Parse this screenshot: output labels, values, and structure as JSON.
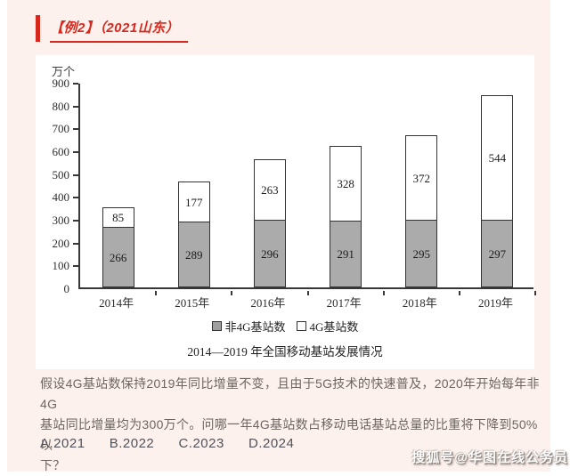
{
  "page": {
    "header": {
      "title": "【例2】（2021山东）"
    },
    "question": {
      "lines": [
        "假设4G基站数保持2019年同比增量不变，且由于5G技术的快速普及，2020年开始每年非4G",
        "基站同比增量均为300万个。问哪一年4G基站数占移动电话基站总量的比重将下降到50%以",
        "下？"
      ]
    },
    "options": [
      "A.2021",
      "B.2022",
      "C.2023",
      "D.2024"
    ]
  },
  "chart_data": {
    "type": "bar",
    "stacked": true,
    "title": "2014—2019 年全国移动基站发展情况",
    "unit_label": "万个",
    "categories": [
      "2014年",
      "2015年",
      "2016年",
      "2017年",
      "2018年",
      "2019年"
    ],
    "series": [
      {
        "name": "非4G基站数",
        "color": "#ababab",
        "values": [
          266,
          289,
          296,
          291,
          295,
          297
        ]
      },
      {
        "name": "4G基站数",
        "color": "#ffffff",
        "values": [
          85,
          177,
          263,
          328,
          372,
          544
        ]
      }
    ],
    "totals": [
      351,
      466,
      559,
      619,
      667,
      841
    ],
    "ylim": [
      0,
      900
    ],
    "ytick_step": 100,
    "grid": false,
    "legend_position": "bottom"
  },
  "watermark": {
    "text": "搜狐号@华图在线公务员"
  },
  "colors": {
    "accent_red": "#d7281d",
    "panel_pink": "#fdf1ee",
    "bar_gray": "#ababab",
    "axis_dark": "#383838",
    "question_text": "#6c6560"
  }
}
